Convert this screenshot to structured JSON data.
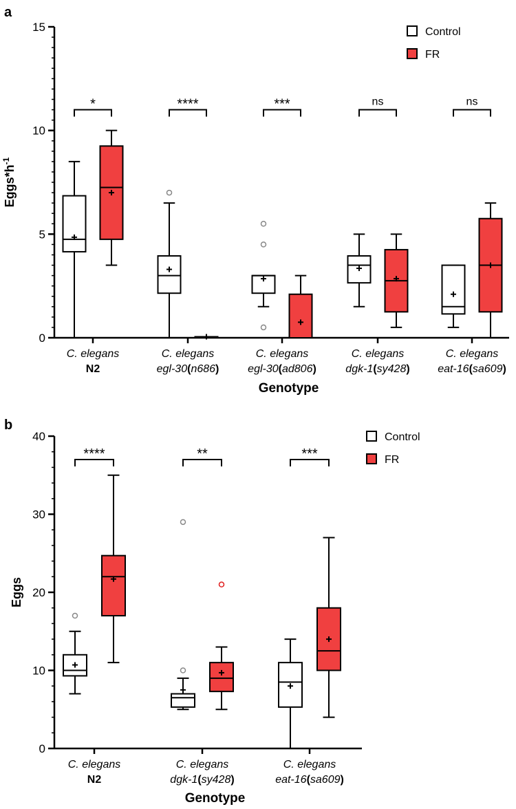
{
  "panels": [
    {
      "label": "a"
    },
    {
      "label": "b"
    }
  ],
  "colors": {
    "control_fill": "#ffffff",
    "fr_fill": "#f04040",
    "stroke": "#000000",
    "outlier": "#888888",
    "fr_outlier": "#e02020"
  },
  "chart_data": [
    {
      "panel": "a",
      "type": "box",
      "ylabel_main": "Eggs*h",
      "ylabel_sup": "-1",
      "xlabel": "Genotype",
      "ylim": [
        0,
        15
      ],
      "yticks": [
        0,
        5,
        10,
        15
      ],
      "grid": false,
      "legend_position": "top-right",
      "legend": [
        "Control",
        "FR"
      ],
      "categories": [
        {
          "line1": "C. elegans",
          "line2_parts": [
            {
              "t": "N2",
              "italic": false
            }
          ]
        },
        {
          "line1": "C. elegans",
          "line2_parts": [
            {
              "t": "egl-30",
              "italic": true
            },
            {
              "t": "(",
              "italic": false
            },
            {
              "t": "n686",
              "italic": true
            },
            {
              "t": ")",
              "italic": false
            }
          ]
        },
        {
          "line1": "C. elegans",
          "line2_parts": [
            {
              "t": "egl-30",
              "italic": true
            },
            {
              "t": "(",
              "italic": false
            },
            {
              "t": "ad806",
              "italic": true
            },
            {
              "t": ")",
              "italic": false
            }
          ]
        },
        {
          "line1": "C. elegans",
          "line2_parts": [
            {
              "t": "dgk-1",
              "italic": true
            },
            {
              "t": "(",
              "italic": false
            },
            {
              "t": "sy428",
              "italic": true
            },
            {
              "t": ")",
              "italic": false
            }
          ]
        },
        {
          "line1": "C. elegans",
          "line2_parts": [
            {
              "t": "eat-16",
              "italic": true
            },
            {
              "t": "(",
              "italic": false
            },
            {
              "t": "sa609",
              "italic": true
            },
            {
              "t": ")",
              "italic": false
            }
          ]
        }
      ],
      "series": [
        {
          "name": "Control",
          "boxes": [
            {
              "min": 0,
              "q1": 4.15,
              "median": 4.75,
              "q3": 6.85,
              "max": 8.5,
              "mean": 4.85,
              "outliers": []
            },
            {
              "min": 0,
              "q1": 2.15,
              "median": 3.0,
              "q3": 3.95,
              "max": 6.5,
              "mean": 3.3,
              "outliers": [
                7.0
              ]
            },
            {
              "min": 1.5,
              "q1": 2.15,
              "median": 3.0,
              "q3": 3.0,
              "max": 3.0,
              "mean": 2.85,
              "outliers": [
                0.5,
                4.5,
                5.5
              ]
            },
            {
              "min": 1.5,
              "q1": 2.65,
              "median": 3.5,
              "q3": 3.95,
              "max": 5.0,
              "mean": 3.35,
              "outliers": []
            },
            {
              "min": 0.5,
              "q1": 1.15,
              "median": 1.5,
              "q3": 3.5,
              "max": 3.5,
              "mean": 2.1,
              "outliers": []
            }
          ]
        },
        {
          "name": "FR",
          "boxes": [
            {
              "min": 3.5,
              "q1": 4.75,
              "median": 7.25,
              "q3": 9.25,
              "max": 10.0,
              "mean": 7.0,
              "outliers": []
            },
            {
              "min": 0,
              "q1": 0,
              "median": 0,
              "q3": 0.05,
              "max": 0.05,
              "mean": 0.05,
              "outliers": []
            },
            {
              "min": 0,
              "q1": 0,
              "median": 0,
              "q3": 2.1,
              "max": 3.0,
              "mean": 0.75,
              "outliers": []
            },
            {
              "min": 0.5,
              "q1": 1.25,
              "median": 2.75,
              "q3": 4.25,
              "max": 5.0,
              "mean": 2.85,
              "outliers": []
            },
            {
              "min": 0,
              "q1": 1.25,
              "median": 3.5,
              "q3": 5.75,
              "max": 6.5,
              "mean": 3.5,
              "outliers": []
            }
          ]
        }
      ],
      "significance": [
        "*",
        "****",
        "***",
        "ns",
        "ns"
      ],
      "sig_level": 11.0
    },
    {
      "panel": "b",
      "type": "box",
      "ylabel_main": "Eggs",
      "ylabel_sup": "",
      "xlabel": "Genotype",
      "ylim": [
        0,
        40
      ],
      "yticks": [
        0,
        10,
        20,
        30,
        40
      ],
      "grid": false,
      "legend_position": "top-right",
      "legend": [
        "Control",
        "FR"
      ],
      "categories": [
        {
          "line1": "C. elegans",
          "line2_parts": [
            {
              "t": "N2",
              "italic": false
            }
          ]
        },
        {
          "line1": "C. elegans",
          "line2_parts": [
            {
              "t": "dgk-1",
              "italic": true
            },
            {
              "t": "(",
              "italic": false
            },
            {
              "t": "sy428",
              "italic": true
            },
            {
              "t": ")",
              "italic": false
            }
          ]
        },
        {
          "line1": "C. elegans",
          "line2_parts": [
            {
              "t": "eat-16",
              "italic": true
            },
            {
              "t": "(",
              "italic": false
            },
            {
              "t": "sa609",
              "italic": true
            },
            {
              "t": ")",
              "italic": false
            }
          ]
        }
      ],
      "series": [
        {
          "name": "Control",
          "boxes": [
            {
              "min": 7,
              "q1": 9.3,
              "median": 10,
              "q3": 12,
              "max": 15,
              "mean": 10.7,
              "outliers": [
                17
              ]
            },
            {
              "min": 5,
              "q1": 5.3,
              "median": 6.5,
              "q3": 7,
              "max": 9,
              "mean": 7.5,
              "outliers": [
                10,
                29
              ]
            },
            {
              "min": 0,
              "q1": 5.3,
              "median": 8.5,
              "q3": 11,
              "max": 14,
              "mean": 8,
              "outliers": []
            }
          ]
        },
        {
          "name": "FR",
          "boxes": [
            {
              "min": 11,
              "q1": 17,
              "median": 22,
              "q3": 24.7,
              "max": 35,
              "mean": 21.7,
              "outliers": []
            },
            {
              "min": 5,
              "q1": 7.3,
              "median": 9,
              "q3": 11,
              "max": 13,
              "mean": 9.7,
              "outliers": [
                21
              ]
            },
            {
              "min": 4,
              "q1": 10,
              "median": 12.5,
              "q3": 18,
              "max": 27,
              "mean": 14,
              "outliers": []
            }
          ]
        }
      ],
      "significance": [
        "****",
        "**",
        "***"
      ],
      "sig_level": 37.0
    }
  ]
}
